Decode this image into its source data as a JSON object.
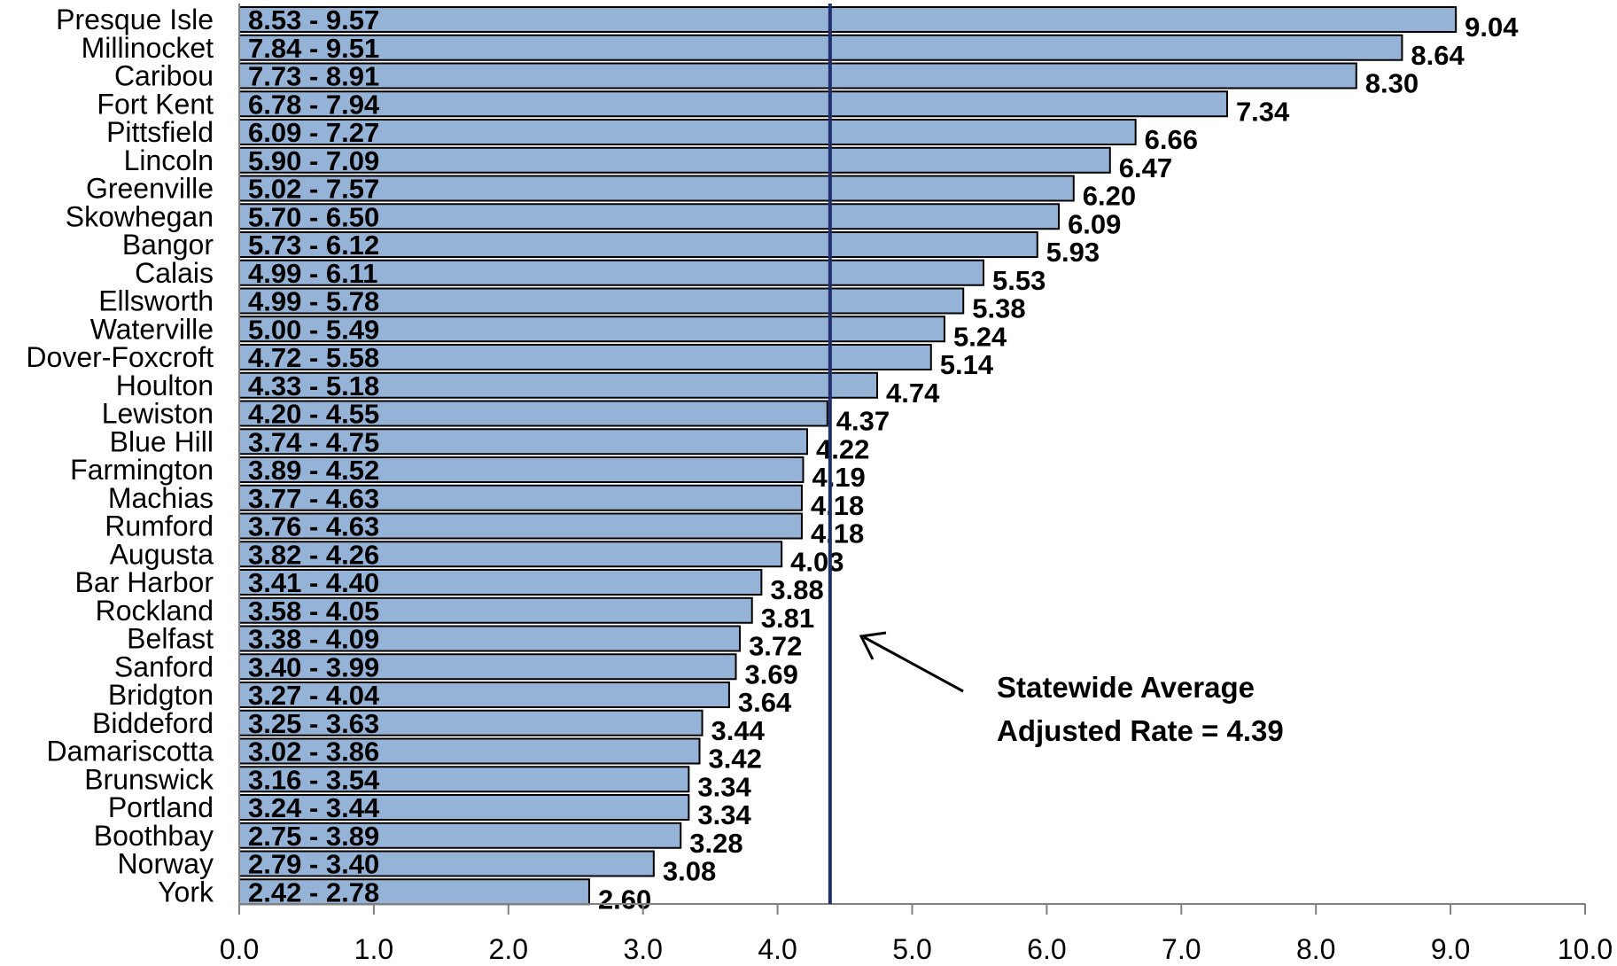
{
  "chart_data": {
    "type": "bar",
    "orientation": "horizontal",
    "categories": [
      "Presque Isle",
      "Millinocket",
      "Caribou",
      "Fort Kent",
      "Pittsfield",
      "Lincoln",
      "Greenville",
      "Skowhegan",
      "Bangor",
      "Calais",
      "Ellsworth",
      "Waterville",
      "Dover-Foxcroft",
      "Houlton",
      "Lewiston",
      "Blue Hill",
      "Farmington",
      "Machias",
      "Rumford",
      "Augusta",
      "Bar Harbor",
      "Rockland",
      "Belfast",
      "Sanford",
      "Bridgton",
      "Biddeford",
      "Damariscotta",
      "Brunswick",
      "Portland",
      "Boothbay",
      "Norway",
      "York"
    ],
    "values": [
      9.04,
      8.64,
      8.3,
      7.34,
      6.66,
      6.47,
      6.2,
      6.09,
      5.93,
      5.53,
      5.38,
      5.24,
      5.14,
      4.74,
      4.37,
      4.22,
      4.19,
      4.18,
      4.18,
      4.03,
      3.88,
      3.81,
      3.72,
      3.69,
      3.64,
      3.44,
      3.42,
      3.34,
      3.34,
      3.28,
      3.08,
      2.6
    ],
    "value_labels": [
      "9.04",
      "8.64",
      "8.30",
      "7.34",
      "6.66",
      "6.47",
      "6.20",
      "6.09",
      "5.93",
      "5.53",
      "5.38",
      "5.24",
      "5.14",
      "4.74",
      "4.37",
      "4.22",
      "4.19",
      "4.18",
      "4.18",
      "4.03",
      "3.88",
      "3.81",
      "3.72",
      "3.69",
      "3.64",
      "3.44",
      "3.42",
      "3.34",
      "3.34",
      "3.28",
      "3.08",
      "2.60"
    ],
    "ranges": [
      "8.53 - 9.57",
      "7.84 - 9.51",
      "7.73 - 8.91",
      "6.78 - 7.94",
      "6.09 - 7.27",
      "5.90 - 7.09",
      "5.02 - 7.57",
      "5.70 - 6.50",
      "5.73 - 6.12",
      "4.99 - 6.11",
      "4.99 - 5.78",
      "5.00 - 5.49",
      "4.72 - 5.58",
      "4.33 - 5.18",
      "4.20 - 4.55",
      "3.74 - 4.75",
      "3.89 - 4.52",
      "3.77 - 4.63",
      "3.76 - 4.63",
      "3.82 - 4.26",
      "3.41 - 4.40",
      "3.58 - 4.05",
      "3.38 - 4.09",
      "3.40 - 3.99",
      "3.27 - 4.04",
      "3.25 - 3.63",
      "3.02 - 3.86",
      "3.16 - 3.54",
      "3.24 - 3.44",
      "2.75 - 3.89",
      "2.79 - 3.40",
      "2.42 - 2.78"
    ],
    "xlim": [
      0,
      10
    ],
    "xticks": [
      "0.0",
      "1.0",
      "2.0",
      "3.0",
      "4.0",
      "5.0",
      "6.0",
      "7.0",
      "8.0",
      "9.0",
      "10.0"
    ],
    "reference_line": {
      "value": 4.39
    },
    "annotation": {
      "line1": "Statewide Average",
      "line2": "Adjusted Rate = 4.39"
    },
    "grid": false,
    "legend": "none",
    "colors": {
      "bar": "#95b3d7",
      "reference_line": "#1f2f6e"
    }
  }
}
